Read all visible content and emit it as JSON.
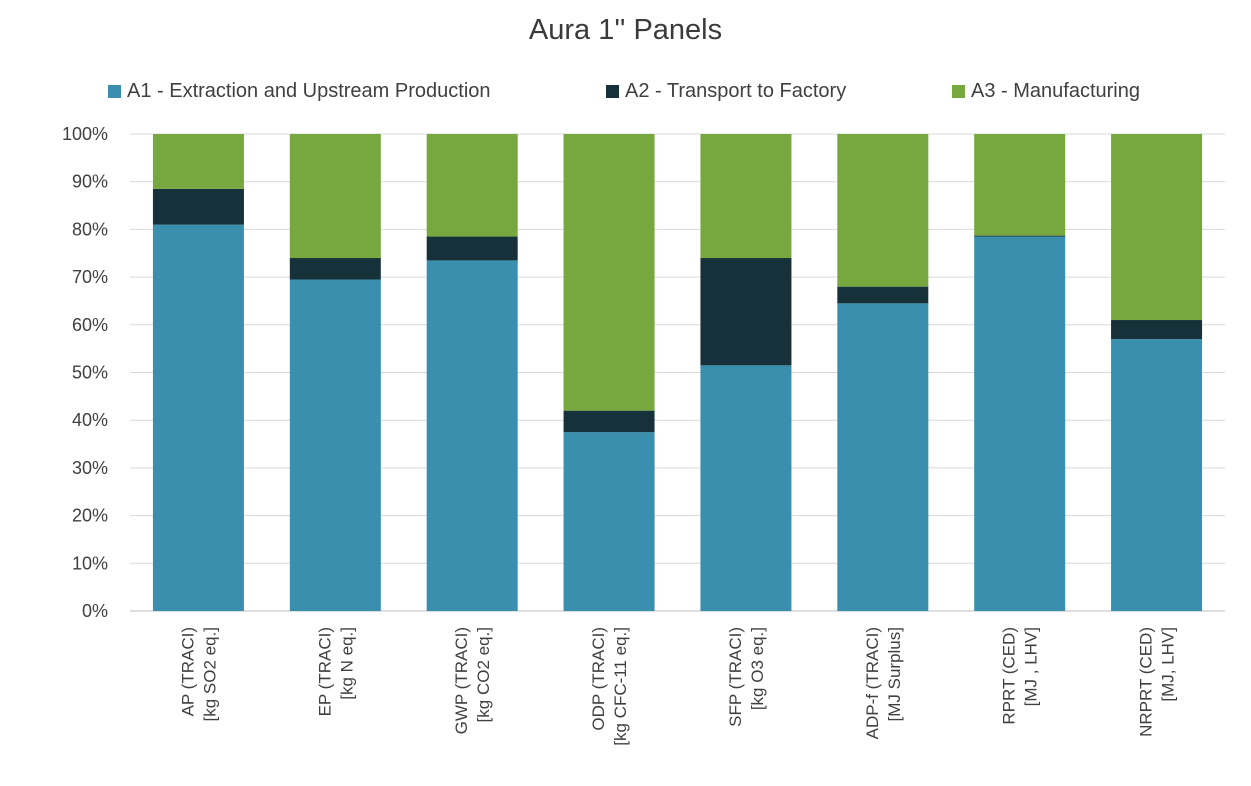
{
  "chart_data": {
    "type": "bar",
    "stacked": true,
    "percent_stacked": true,
    "title": "Aura 1'' Panels",
    "xlabel": "",
    "ylabel": "",
    "ylim": [
      0,
      100
    ],
    "y_ticks": [
      "0%",
      "10%",
      "20%",
      "30%",
      "40%",
      "50%",
      "60%",
      "70%",
      "80%",
      "90%",
      "100%"
    ],
    "grid": true,
    "legend_position": "top",
    "categories": [
      [
        "AP (TRACI)",
        "[kg SO2 eq.]"
      ],
      [
        "EP (TRACI)",
        "[kg N eq.]"
      ],
      [
        "GWP (TRACI)",
        "[kg CO2 eq.]"
      ],
      [
        "ODP (TRACI)",
        "[kg CFC-11 eq.]"
      ],
      [
        "SFP (TRACI)",
        "[kg O3 eq.]"
      ],
      [
        "ADP-f (TRACI)",
        "[MJ Surplus]"
      ],
      [
        "RPRT (CED)",
        "[MJ , LHV]"
      ],
      [
        "NRPRT (CED)",
        "[MJ, LHV]"
      ]
    ],
    "series": [
      {
        "name": "A1 - Extraction and Upstream Production",
        "color": "#3a8fae",
        "values": [
          81,
          69.5,
          73.5,
          37.5,
          51.5,
          64.5,
          78.5,
          57
        ]
      },
      {
        "name": "A2 - Transport to Factory",
        "color": "#17313a",
        "values": [
          7.5,
          4.5,
          5,
          4.5,
          22.5,
          3.5,
          0.2,
          4
        ]
      },
      {
        "name": "A3 - Manufacturing",
        "color": "#76a83f",
        "values": [
          11.5,
          26,
          21.5,
          58,
          26,
          32,
          21.3,
          39
        ]
      }
    ]
  }
}
